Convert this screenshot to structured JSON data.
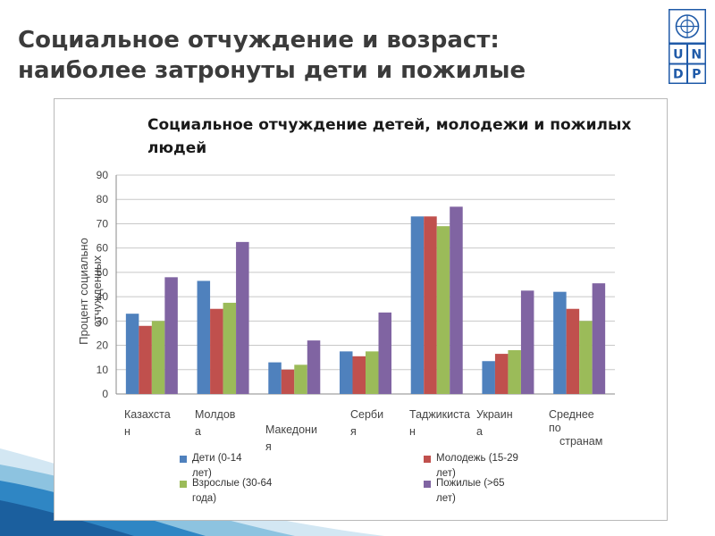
{
  "slide": {
    "title_line1": "Социальное отчуждение и возраст:",
    "title_line2": "наиболее затронуты дети и пожилые"
  },
  "logo": {
    "letters": [
      "U",
      "N",
      "D",
      "P"
    ],
    "emblem_icon": "un-emblem-icon"
  },
  "colors": {
    "series": [
      "#4f81bd",
      "#c0504d",
      "#9bbb59",
      "#8064a2"
    ],
    "logo_blue": "#1f5aa8"
  },
  "chart_data": {
    "type": "bar",
    "title": "Социальное отчуждение детей, молодежи и пожилых людей",
    "ylabel": "Процент социально отчужденных",
    "xlabel": "",
    "ylim": [
      0,
      90
    ],
    "yticks": [
      "0",
      "10",
      "20",
      "30",
      "40",
      "50",
      "60",
      "70",
      "80",
      "90"
    ],
    "grid": true,
    "legend_placement": "bottom",
    "categories": [
      "Казахстан",
      "Молдова",
      "Македония",
      "Сербия",
      "Таджикистан",
      "Украина",
      "Среднее по странам"
    ],
    "category_labels": [
      [
        "Казахста",
        "н"
      ],
      [
        "Молдов",
        "а"
      ],
      [
        "Македони",
        "я"
      ],
      [
        "Серби",
        "я"
      ],
      [
        "Таджикиста",
        "н"
      ],
      [
        "Украин",
        "а"
      ],
      [
        "Среднее",
        "по",
        "странам"
      ]
    ],
    "series": [
      {
        "name": "Дети (0-14 лет)",
        "legend_lines": [
          "Дети (0-14",
          "лет)"
        ],
        "values": [
          33,
          46.5,
          13,
          17.5,
          73,
          13.5,
          42
        ]
      },
      {
        "name": "Молодежь (15-29 лет)",
        "legend_lines": [
          "Молодежь (15-29",
          "лет)"
        ],
        "values": [
          28,
          35,
          10,
          15.5,
          73,
          16.5,
          35
        ]
      },
      {
        "name": "Взрослые (30-64 года)",
        "legend_lines": [
          "Взрослые (30-64",
          "года)"
        ],
        "values": [
          30,
          37.5,
          12,
          17.5,
          69,
          18,
          30
        ]
      },
      {
        "name": "Пожилые (>65 лет)",
        "legend_lines": [
          "Пожилые (>65",
          "лет)"
        ],
        "values": [
          48,
          62.5,
          22,
          33.5,
          77,
          42.5,
          45.5
        ]
      }
    ]
  }
}
